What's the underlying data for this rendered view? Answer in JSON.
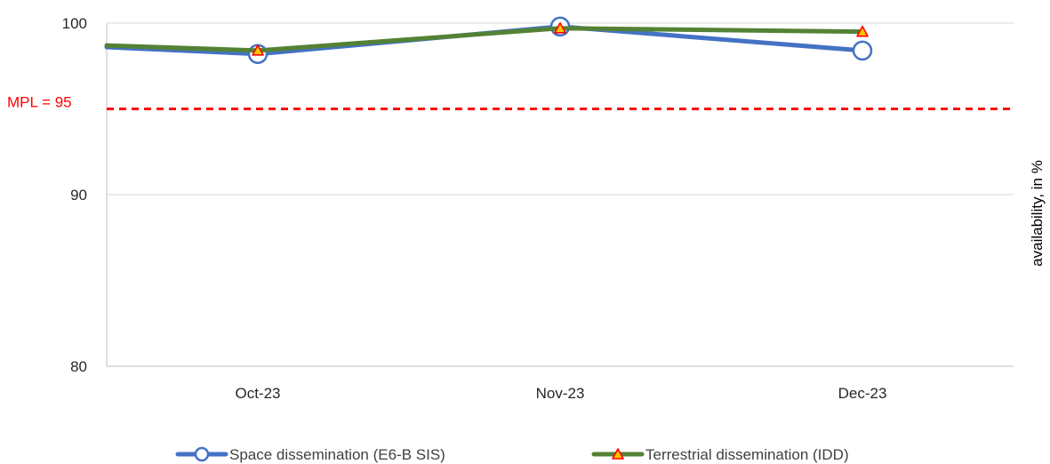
{
  "chart_data": {
    "type": "line",
    "categories": [
      "Oct-23",
      "Nov-23",
      "Dec-23"
    ],
    "series": [
      {
        "name": "Space dissemination (E6-B SIS)",
        "values": [
          98.2,
          99.8,
          98.4
        ],
        "color": "#4472C4",
        "marker": "circle-open",
        "lead_in_value": 98.6
      },
      {
        "name": "Terrestrial dissemination (IDD)",
        "values": [
          98.4,
          99.7,
          99.5
        ],
        "color": "#548235",
        "marker": "triangle-yellow",
        "lead_in_value": 98.7
      }
    ],
    "ylim": [
      80,
      100
    ],
    "yticks": [
      80,
      90,
      100
    ],
    "ylabel": "availability, in %",
    "xlabel": "",
    "title": "",
    "y_axis_position": "right",
    "grid": true,
    "legend_position": "bottom",
    "threshold": {
      "label": "MPL = 95",
      "value": 95,
      "color": "#FF0000",
      "style": "dashed"
    }
  }
}
